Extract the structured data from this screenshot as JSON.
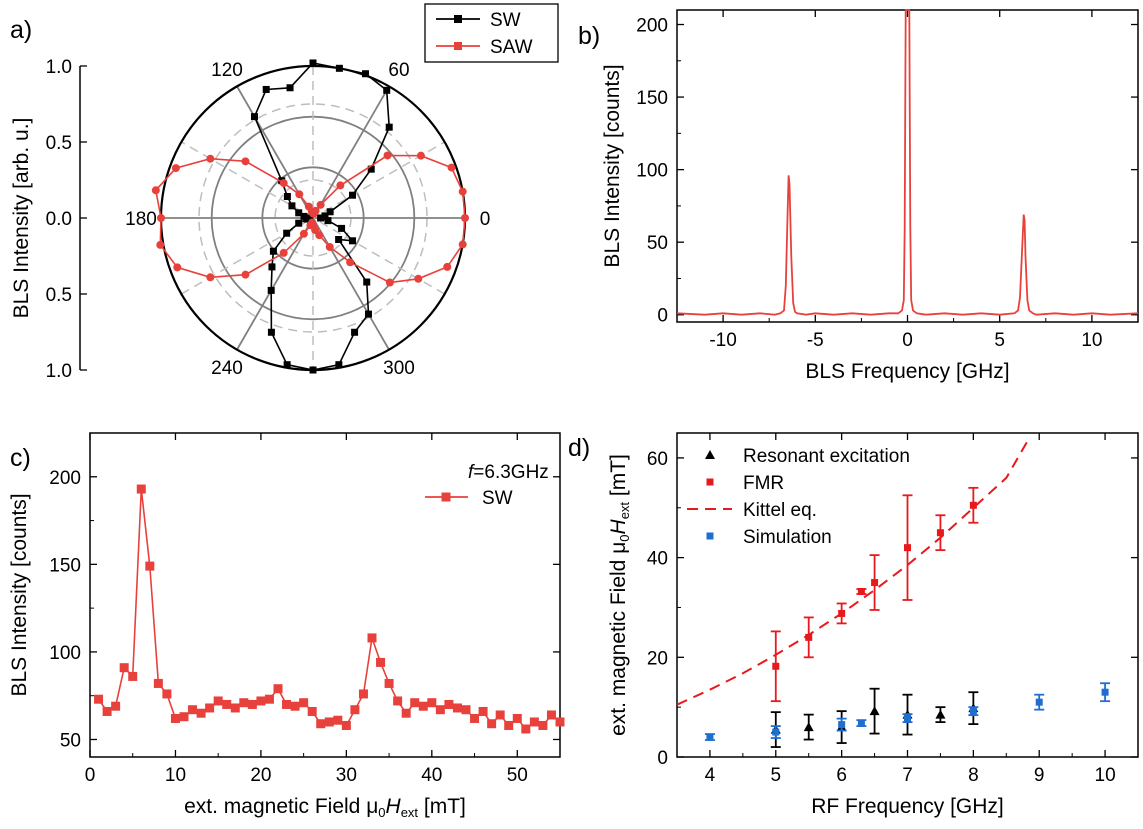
{
  "colors": {
    "sw": "#000000",
    "saw": "#e8413c",
    "red": "#e8191c",
    "blue": "#1f6fd1",
    "grey": "#808080",
    "lightgrey": "#bdbdbd"
  },
  "panels": {
    "a": {
      "label": "a)"
    },
    "b": {
      "label": "b)"
    },
    "c": {
      "label": "c)"
    },
    "d": {
      "label": "d)"
    }
  },
  "chart_data": [
    {
      "id": "a",
      "type": "polar-line",
      "ylabel": "BLS Intensity [arb. u.]",
      "radial_ticks": [
        "1.0",
        "0.5",
        "0.0",
        "0.5",
        "1.0"
      ],
      "angle_labels": [
        "0",
        "60",
        "120",
        "180",
        "240",
        "300"
      ],
      "angle_label_degrees": [
        0,
        60,
        120,
        180,
        240,
        300
      ],
      "rmax": 1.0,
      "legend": [
        "SW",
        "SAW"
      ],
      "legend_position": "top-right",
      "series": [
        {
          "name": "SW",
          "points": [
            [
              0,
              0.05
            ],
            [
              10,
              0.08
            ],
            [
              20,
              0.12
            ],
            [
              30,
              0.3
            ],
            [
              40,
              0.5
            ],
            [
              50,
              0.78
            ],
            [
              60,
              0.97
            ],
            [
              70,
              1.01
            ],
            [
              80,
              1.0
            ],
            [
              90,
              1.02
            ],
            [
              100,
              0.87
            ],
            [
              110,
              0.9
            ],
            [
              120,
              0.77
            ],
            [
              130,
              0.32
            ],
            [
              140,
              0.22
            ],
            [
              150,
              0.16
            ],
            [
              160,
              0.1
            ],
            [
              170,
              0.06
            ],
            [
              180,
              0.02
            ],
            [
              190,
              0.04
            ],
            [
              200,
              0.1
            ],
            [
              210,
              0.2
            ],
            [
              220,
              0.34
            ],
            [
              230,
              0.42
            ],
            [
              240,
              0.55
            ],
            [
              250,
              0.8
            ],
            [
              260,
              0.98
            ],
            [
              270,
              1.0
            ],
            [
              280,
              0.98
            ],
            [
              290,
              0.8
            ],
            [
              300,
              0.73
            ],
            [
              310,
              0.55
            ],
            [
              320,
              0.22
            ],
            [
              330,
              0.3
            ],
            [
              340,
              0.2
            ],
            [
              350,
              0.1
            ]
          ]
        },
        {
          "name": "SAW",
          "points": [
            [
              0,
              1.0
            ],
            [
              10,
              1.0
            ],
            [
              20,
              0.97
            ],
            [
              30,
              0.82
            ],
            [
              40,
              0.64
            ],
            [
              50,
              0.28
            ],
            [
              60,
              0.1
            ],
            [
              70,
              0.05
            ],
            [
              80,
              0.03
            ],
            [
              90,
              0.03
            ],
            [
              100,
              0.04
            ],
            [
              110,
              0.08
            ],
            [
              120,
              0.18
            ],
            [
              130,
              0.3
            ],
            [
              140,
              0.58
            ],
            [
              150,
              0.78
            ],
            [
              160,
              0.96
            ],
            [
              170,
              1.05
            ],
            [
              180,
              1.0
            ],
            [
              190,
              1.02
            ],
            [
              200,
              0.95
            ],
            [
              210,
              0.78
            ],
            [
              220,
              0.58
            ],
            [
              230,
              0.3
            ],
            [
              240,
              0.12
            ],
            [
              250,
              0.05
            ],
            [
              260,
              0.03
            ],
            [
              270,
              0.05
            ],
            [
              280,
              0.08
            ],
            [
              290,
              0.12
            ],
            [
              300,
              0.22
            ],
            [
              310,
              0.38
            ],
            [
              320,
              0.66
            ],
            [
              330,
              0.8
            ],
            [
              340,
              0.94
            ],
            [
              350,
              1.0
            ]
          ]
        }
      ]
    },
    {
      "id": "b",
      "type": "line",
      "xlabel": "BLS Frequency [GHz]",
      "ylabel": "BLS Intensity [counts]",
      "xlim": [
        -12.5,
        12.5
      ],
      "ylim": [
        -5,
        210
      ],
      "xticks": [
        -10,
        -5,
        0,
        5,
        10
      ],
      "yticks": [
        0,
        50,
        100,
        150,
        200
      ],
      "series": [
        {
          "name": "",
          "x": [
            -12.5,
            -11,
            -10,
            -9,
            -8,
            -7.2,
            -6.9,
            -6.7,
            -6.6,
            -6.5,
            -6.45,
            -6.4,
            -6.3,
            -6.2,
            -6.1,
            -6.0,
            -5.5,
            -5,
            -4,
            -3,
            -2,
            -1,
            -0.5,
            -0.3,
            -0.2,
            -0.15,
            -0.1,
            0.0,
            0.1,
            0.15,
            0.2,
            0.3,
            0.5,
            1,
            2,
            3,
            4,
            5,
            5.8,
            6.0,
            6.1,
            6.2,
            6.3,
            6.35,
            6.4,
            6.5,
            6.6,
            6.8,
            7,
            8,
            9,
            10,
            11,
            12.5
          ],
          "y": [
            1,
            0,
            1,
            0,
            1,
            0,
            1,
            3,
            20,
            70,
            96,
            90,
            40,
            8,
            2,
            1,
            0,
            1,
            0,
            1,
            0,
            1,
            1,
            3,
            10,
            60,
            210,
            212,
            210,
            60,
            10,
            3,
            1,
            0,
            1,
            0,
            1,
            0,
            1,
            3,
            12,
            40,
            69,
            65,
            40,
            10,
            3,
            1,
            0,
            1,
            0,
            1,
            0,
            1
          ]
        }
      ]
    },
    {
      "id": "c",
      "type": "line",
      "xlabel": "ext. magnetic Field μ0Hext [mT]",
      "ylabel": "BLS Intensity [counts]",
      "xlim": [
        0,
        55
      ],
      "ylim": [
        40,
        225
      ],
      "xticks": [
        0,
        10,
        20,
        30,
        40,
        50
      ],
      "yticks": [
        50,
        100,
        150,
        200
      ],
      "annotation": "f=6.3GHz",
      "legend": [
        "SW"
      ],
      "series": [
        {
          "name": "SW",
          "x": [
            1,
            2,
            3,
            4,
            5,
            6,
            7,
            8,
            9,
            10,
            11,
            12,
            13,
            14,
            15,
            16,
            17,
            18,
            19,
            20,
            21,
            22,
            23,
            24,
            25,
            26,
            27,
            28,
            29,
            30,
            31,
            32,
            33,
            34,
            35,
            36,
            37,
            38,
            39,
            40,
            41,
            42,
            43,
            44,
            45,
            46,
            47,
            48,
            49,
            50,
            51,
            52,
            53,
            54,
            55
          ],
          "y": [
            73,
            66,
            69,
            91,
            86,
            193,
            149,
            82,
            76,
            62,
            63,
            67,
            65,
            68,
            72,
            70,
            68,
            71,
            70,
            72,
            73,
            79,
            70,
            69,
            71,
            66,
            59,
            60,
            61,
            58,
            67,
            76,
            108,
            94,
            82,
            72,
            65,
            71,
            69,
            71,
            67,
            70,
            68,
            67,
            62,
            66,
            59,
            64,
            58,
            62,
            56,
            60,
            58,
            64,
            60
          ]
        }
      ]
    },
    {
      "id": "d",
      "type": "scatter",
      "xlabel": "RF Frequency [GHz]",
      "ylabel": "ext. magnetic Field μ0Hext [mT]",
      "xlim": [
        3.5,
        10.5
      ],
      "ylim": [
        0,
        65
      ],
      "xticks": [
        4,
        5,
        6,
        7,
        8,
        9,
        10
      ],
      "yticks": [
        0,
        20,
        40,
        60
      ],
      "legend": [
        "Resonant excitation",
        "FMR",
        "Kittel eq.",
        "Simulation"
      ],
      "legend_position": "top-left",
      "series": [
        {
          "name": "Resonant excitation",
          "marker": "triangle",
          "x": [
            5,
            5.5,
            6,
            6.5,
            7,
            7.5,
            8
          ],
          "y": [
            5.5,
            6,
            6,
            9.2,
            8.5,
            8.5,
            9.8
          ],
          "err": [
            3.5,
            2.5,
            3.2,
            4.5,
            4,
            1.5,
            3.2
          ]
        },
        {
          "name": "FMR",
          "marker": "square",
          "x": [
            5,
            5.5,
            6,
            6.3,
            6.5,
            7,
            7.5,
            8
          ],
          "y": [
            18.2,
            24,
            28.8,
            33.2,
            35,
            42,
            45,
            50.5
          ],
          "err": [
            7,
            4,
            2,
            0.5,
            5.5,
            10.5,
            3.5,
            3.5
          ]
        },
        {
          "name": "Kittel eq.",
          "line": "dashed",
          "x": [
            3.5,
            4,
            4.5,
            5,
            5.5,
            6,
            6.5,
            7,
            7.5,
            8,
            8.5,
            8.85
          ],
          "y": [
            10.5,
            13.5,
            16.8,
            20.5,
            24.5,
            28.8,
            33.5,
            38.5,
            44,
            50,
            56,
            64
          ]
        },
        {
          "name": "Simulation",
          "marker": "square",
          "x": [
            4,
            5,
            6,
            6.3,
            7,
            8,
            9,
            10
          ],
          "y": [
            4,
            5,
            6.5,
            6.8,
            7.8,
            9.2,
            11,
            13
          ],
          "err": [
            0.6,
            1.2,
            1.2,
            0.6,
            0.8,
            0.8,
            1.5,
            1.8
          ]
        }
      ]
    }
  ]
}
